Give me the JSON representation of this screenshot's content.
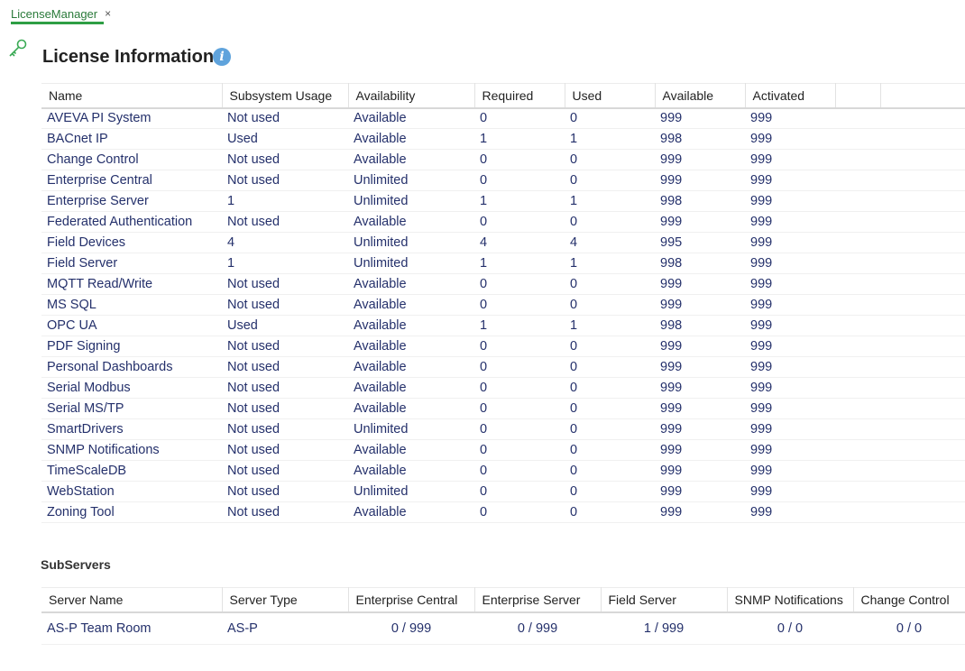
{
  "tab": {
    "label": "LicenseManager",
    "close": "×"
  },
  "title": "License Information",
  "info_glyph": "i",
  "license_table": {
    "columns": [
      "Name",
      "Subsystem Usage",
      "Availability",
      "Required",
      "Used",
      "Available",
      "Activated",
      ""
    ],
    "rows": [
      [
        "AVEVA PI System",
        "Not used",
        "Available",
        "0",
        "0",
        "999",
        "999"
      ],
      [
        "BACnet IP",
        "Used",
        "Available",
        "1",
        "1",
        "998",
        "999"
      ],
      [
        "Change Control",
        "Not used",
        "Available",
        "0",
        "0",
        "999",
        "999"
      ],
      [
        "Enterprise Central",
        "Not used",
        "Unlimited",
        "0",
        "0",
        "999",
        "999"
      ],
      [
        "Enterprise Server",
        "1",
        "Unlimited",
        "1",
        "1",
        "998",
        "999"
      ],
      [
        "Federated Authentication",
        "Not used",
        "Available",
        "0",
        "0",
        "999",
        "999"
      ],
      [
        "Field Devices",
        "4",
        "Unlimited",
        "4",
        "4",
        "995",
        "999"
      ],
      [
        "Field Server",
        "1",
        "Unlimited",
        "1",
        "1",
        "998",
        "999"
      ],
      [
        "MQTT Read/Write",
        "Not used",
        "Available",
        "0",
        "0",
        "999",
        "999"
      ],
      [
        "MS SQL",
        "Not used",
        "Available",
        "0",
        "0",
        "999",
        "999"
      ],
      [
        "OPC UA",
        "Used",
        "Available",
        "1",
        "1",
        "998",
        "999"
      ],
      [
        "PDF Signing",
        "Not used",
        "Available",
        "0",
        "0",
        "999",
        "999"
      ],
      [
        "Personal Dashboards",
        "Not used",
        "Available",
        "0",
        "0",
        "999",
        "999"
      ],
      [
        "Serial Modbus",
        "Not used",
        "Available",
        "0",
        "0",
        "999",
        "999"
      ],
      [
        "Serial MS/TP",
        "Not used",
        "Available",
        "0",
        "0",
        "999",
        "999"
      ],
      [
        "SmartDrivers",
        "Not used",
        "Unlimited",
        "0",
        "0",
        "999",
        "999"
      ],
      [
        "SNMP Notifications",
        "Not used",
        "Available",
        "0",
        "0",
        "999",
        "999"
      ],
      [
        "TimeScaleDB",
        "Not used",
        "Available",
        "0",
        "0",
        "999",
        "999"
      ],
      [
        "WebStation",
        "Not used",
        "Unlimited",
        "0",
        "0",
        "999",
        "999"
      ],
      [
        "Zoning Tool",
        "Not used",
        "Available",
        "0",
        "0",
        "999",
        "999"
      ]
    ]
  },
  "subservers": {
    "label": "SubServers",
    "columns": [
      "Server Name",
      "Server Type",
      "Enterprise Central",
      "Enterprise Server",
      "Field Server",
      "SNMP Notifications",
      "Change Control"
    ],
    "rows": [
      [
        "AS-P Team Room",
        "AS-P",
        "0 / 999",
        "0 / 999",
        "1 / 999",
        "0 / 0",
        "0 / 0"
      ]
    ]
  },
  "colors": {
    "accent": "#2e9e44",
    "text_link": "#24306b",
    "info": "#5fa3dc"
  },
  "icons": {
    "tab": "key-icon",
    "info": "info-icon"
  }
}
